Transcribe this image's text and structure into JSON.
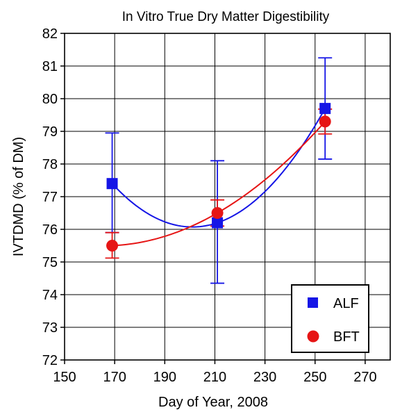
{
  "chart_data": {
    "type": "scatter",
    "title": "In Vitro True Dry Matter Digestibility",
    "xlabel": "Day of Year, 2008",
    "ylabel": "IVTDMD (% of DM)",
    "xlim": [
      150,
      280
    ],
    "ylim": [
      72,
      82
    ],
    "xticks": [
      150,
      170,
      190,
      210,
      230,
      250,
      270
    ],
    "yticks": [
      72,
      73,
      74,
      75,
      76,
      77,
      78,
      79,
      80,
      81,
      82
    ],
    "grid": true,
    "legend_position": "bottom-right",
    "series": [
      {
        "name": "ALF",
        "color": "#1515e6",
        "marker": "square",
        "x": [
          169,
          211,
          254
        ],
        "y": [
          77.4,
          76.2,
          79.7
        ],
        "err_low": [
          75.9,
          74.35,
          78.15
        ],
        "err_high": [
          78.95,
          78.1,
          81.25
        ]
      },
      {
        "name": "BFT",
        "color": "#e61515",
        "marker": "circle",
        "x": [
          169,
          211,
          254
        ],
        "y": [
          75.5,
          76.5,
          79.3
        ],
        "err_low": [
          75.12,
          76.1,
          78.92
        ],
        "err_high": [
          75.9,
          76.9,
          79.68
        ]
      }
    ]
  }
}
